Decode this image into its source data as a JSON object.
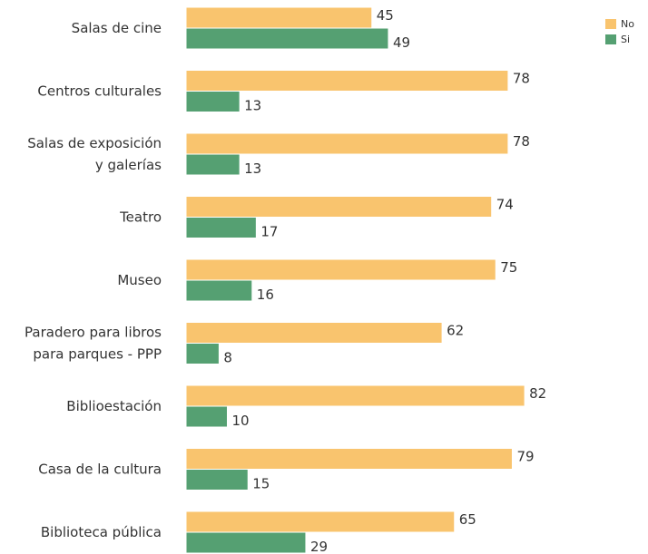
{
  "chart_data": {
    "type": "bar",
    "orientation": "horizontal",
    "categories": [
      [
        "Salas de cine"
      ],
      [
        "Centros culturales"
      ],
      [
        "Salas de exposición",
        "y galerías"
      ],
      [
        "Teatro"
      ],
      [
        "Museo"
      ],
      [
        "Paradero para libros",
        "para parques - PPP"
      ],
      [
        "Biblioestación"
      ],
      [
        "Casa de la cultura"
      ],
      [
        "Biblioteca pública"
      ]
    ],
    "series": [
      {
        "name": "No",
        "color": "#F9C46E",
        "values": [
          45,
          78,
          78,
          74,
          75,
          62,
          82,
          79,
          65
        ]
      },
      {
        "name": "Si",
        "color": "#55A072",
        "values": [
          49,
          13,
          13,
          17,
          16,
          8,
          10,
          15,
          29
        ]
      }
    ],
    "xlim": [
      0,
      100
    ],
    "grid": false,
    "legend_position": "top-right",
    "data_labels": true
  }
}
